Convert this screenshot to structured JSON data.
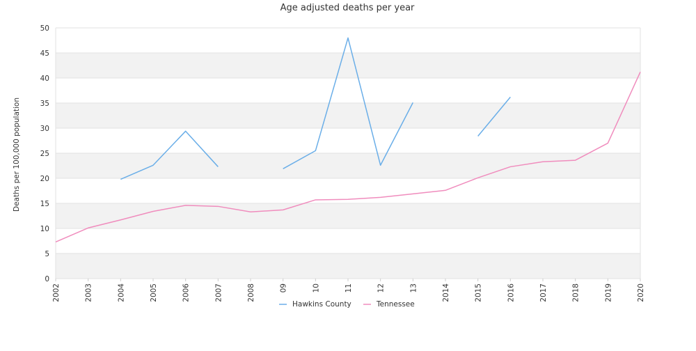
{
  "chart_data": {
    "type": "line",
    "title": "Age adjusted deaths per year",
    "xlabel": "",
    "ylabel": "Deaths per 100,000 population",
    "ylim": [
      0,
      50
    ],
    "yticks": [
      0,
      5,
      10,
      15,
      20,
      25,
      30,
      35,
      40,
      45,
      50
    ],
    "categories": [
      "2002",
      "2003",
      "2004",
      "2005",
      "2006",
      "2007",
      "2008",
      "09",
      "10",
      "11",
      "12",
      "13",
      "2014",
      "2015",
      "2016",
      "2017",
      "2018",
      "2019",
      "2020"
    ],
    "grid": true,
    "legend_position": "bottom",
    "series": [
      {
        "name": "Hawkins County",
        "color": "#6aaee8",
        "values": [
          null,
          null,
          19.8,
          22.6,
          29.4,
          22.3,
          null,
          21.9,
          25.5,
          48.0,
          22.6,
          35.1,
          null,
          28.4,
          36.2,
          null,
          null,
          null,
          null
        ]
      },
      {
        "name": "Tennessee",
        "color": "#f08cbd",
        "values": [
          7.3,
          10.1,
          11.7,
          13.4,
          14.6,
          14.4,
          13.3,
          13.7,
          15.7,
          15.8,
          16.2,
          16.9,
          17.6,
          20.1,
          22.3,
          23.3,
          23.6,
          27.0,
          41.2
        ]
      }
    ]
  }
}
